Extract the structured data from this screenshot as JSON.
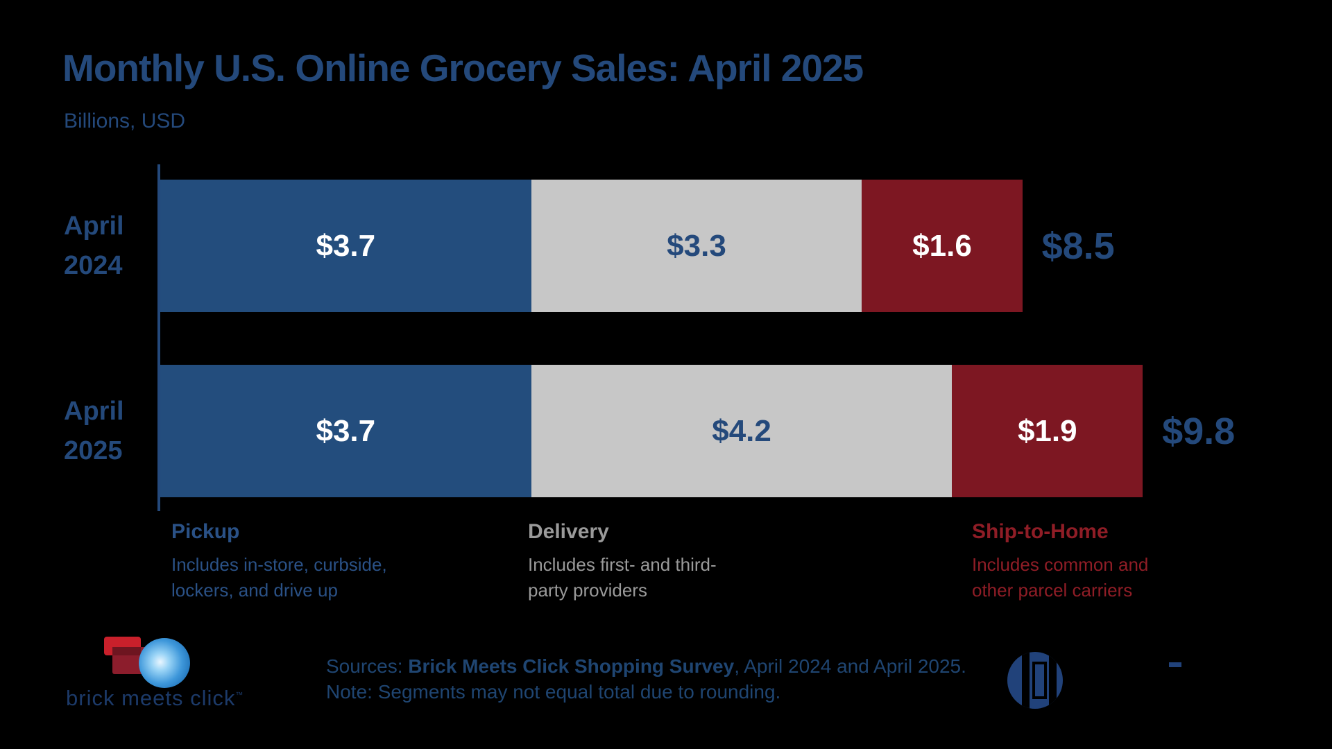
{
  "title": "Monthly U.S. Online Grocery Sales: April 2025",
  "subtitle": "Billions, USD",
  "colors": {
    "background": "#000000",
    "navy_text": "#24497B",
    "pickup_bar": "#234D7D",
    "delivery_bar": "#C7C7C7",
    "ship_to_home_bar": "#7D1722",
    "white_label": "#FFFFFF",
    "legend_gray": "#9A9A9A",
    "legend_red": "#8F1D26",
    "footer_text": "#1F4571"
  },
  "chart_data": {
    "type": "bar",
    "orientation": "horizontal",
    "stacked": true,
    "title": "Monthly U.S. Online Grocery Sales: April 2025",
    "subtitle": "Billions, USD",
    "unit": "Billions USD",
    "categories": [
      "April 2024",
      "April 2025"
    ],
    "series": [
      {
        "name": "Pickup",
        "values": [
          3.7,
          3.7
        ],
        "color": "#234D7D",
        "label_color": "#FFFFFF"
      },
      {
        "name": "Delivery",
        "values": [
          3.3,
          4.2
        ],
        "color": "#C7C7C7",
        "label_color": "#24497B"
      },
      {
        "name": "Ship-to-Home",
        "values": [
          1.6,
          1.9
        ],
        "color": "#7D1722",
        "label_color": "#FFFFFF"
      }
    ],
    "bar_labels": [
      [
        "$3.7",
        "$3.3",
        "$1.6"
      ],
      [
        "$3.7",
        "$4.2",
        "$1.9"
      ]
    ],
    "totals": [
      8.5,
      9.8
    ],
    "total_labels": [
      "$8.5",
      "$9.8"
    ],
    "legend_position": "bottom",
    "grid": false
  },
  "rows": [
    {
      "label_line1": "April",
      "label_line2": "2024"
    },
    {
      "label_line1": "April",
      "label_line2": "2025"
    }
  ],
  "legend": [
    {
      "title": "Pickup",
      "desc1": "Includes in-store, curbside,",
      "desc2": "lockers, and drive up",
      "color": "#2A5186"
    },
    {
      "title": "Delivery",
      "desc1": "Includes first- and third-",
      "desc2": "party providers",
      "color": "#9A9A9A"
    },
    {
      "title": "Ship-to-Home",
      "desc1": "Includes common and",
      "desc2": "other parcel carriers",
      "color": "#8F1D26"
    }
  ],
  "footer": {
    "sources_prefix": "Sources: ",
    "sources_bold": "Brick Meets Click Shopping Survey",
    "sources_suffix": ", April 2024 and April 2025.",
    "note": "Note: Segments may not equal total due to rounding.",
    "left_logo_text": "brick meets click",
    "left_logo_tm": "™"
  }
}
